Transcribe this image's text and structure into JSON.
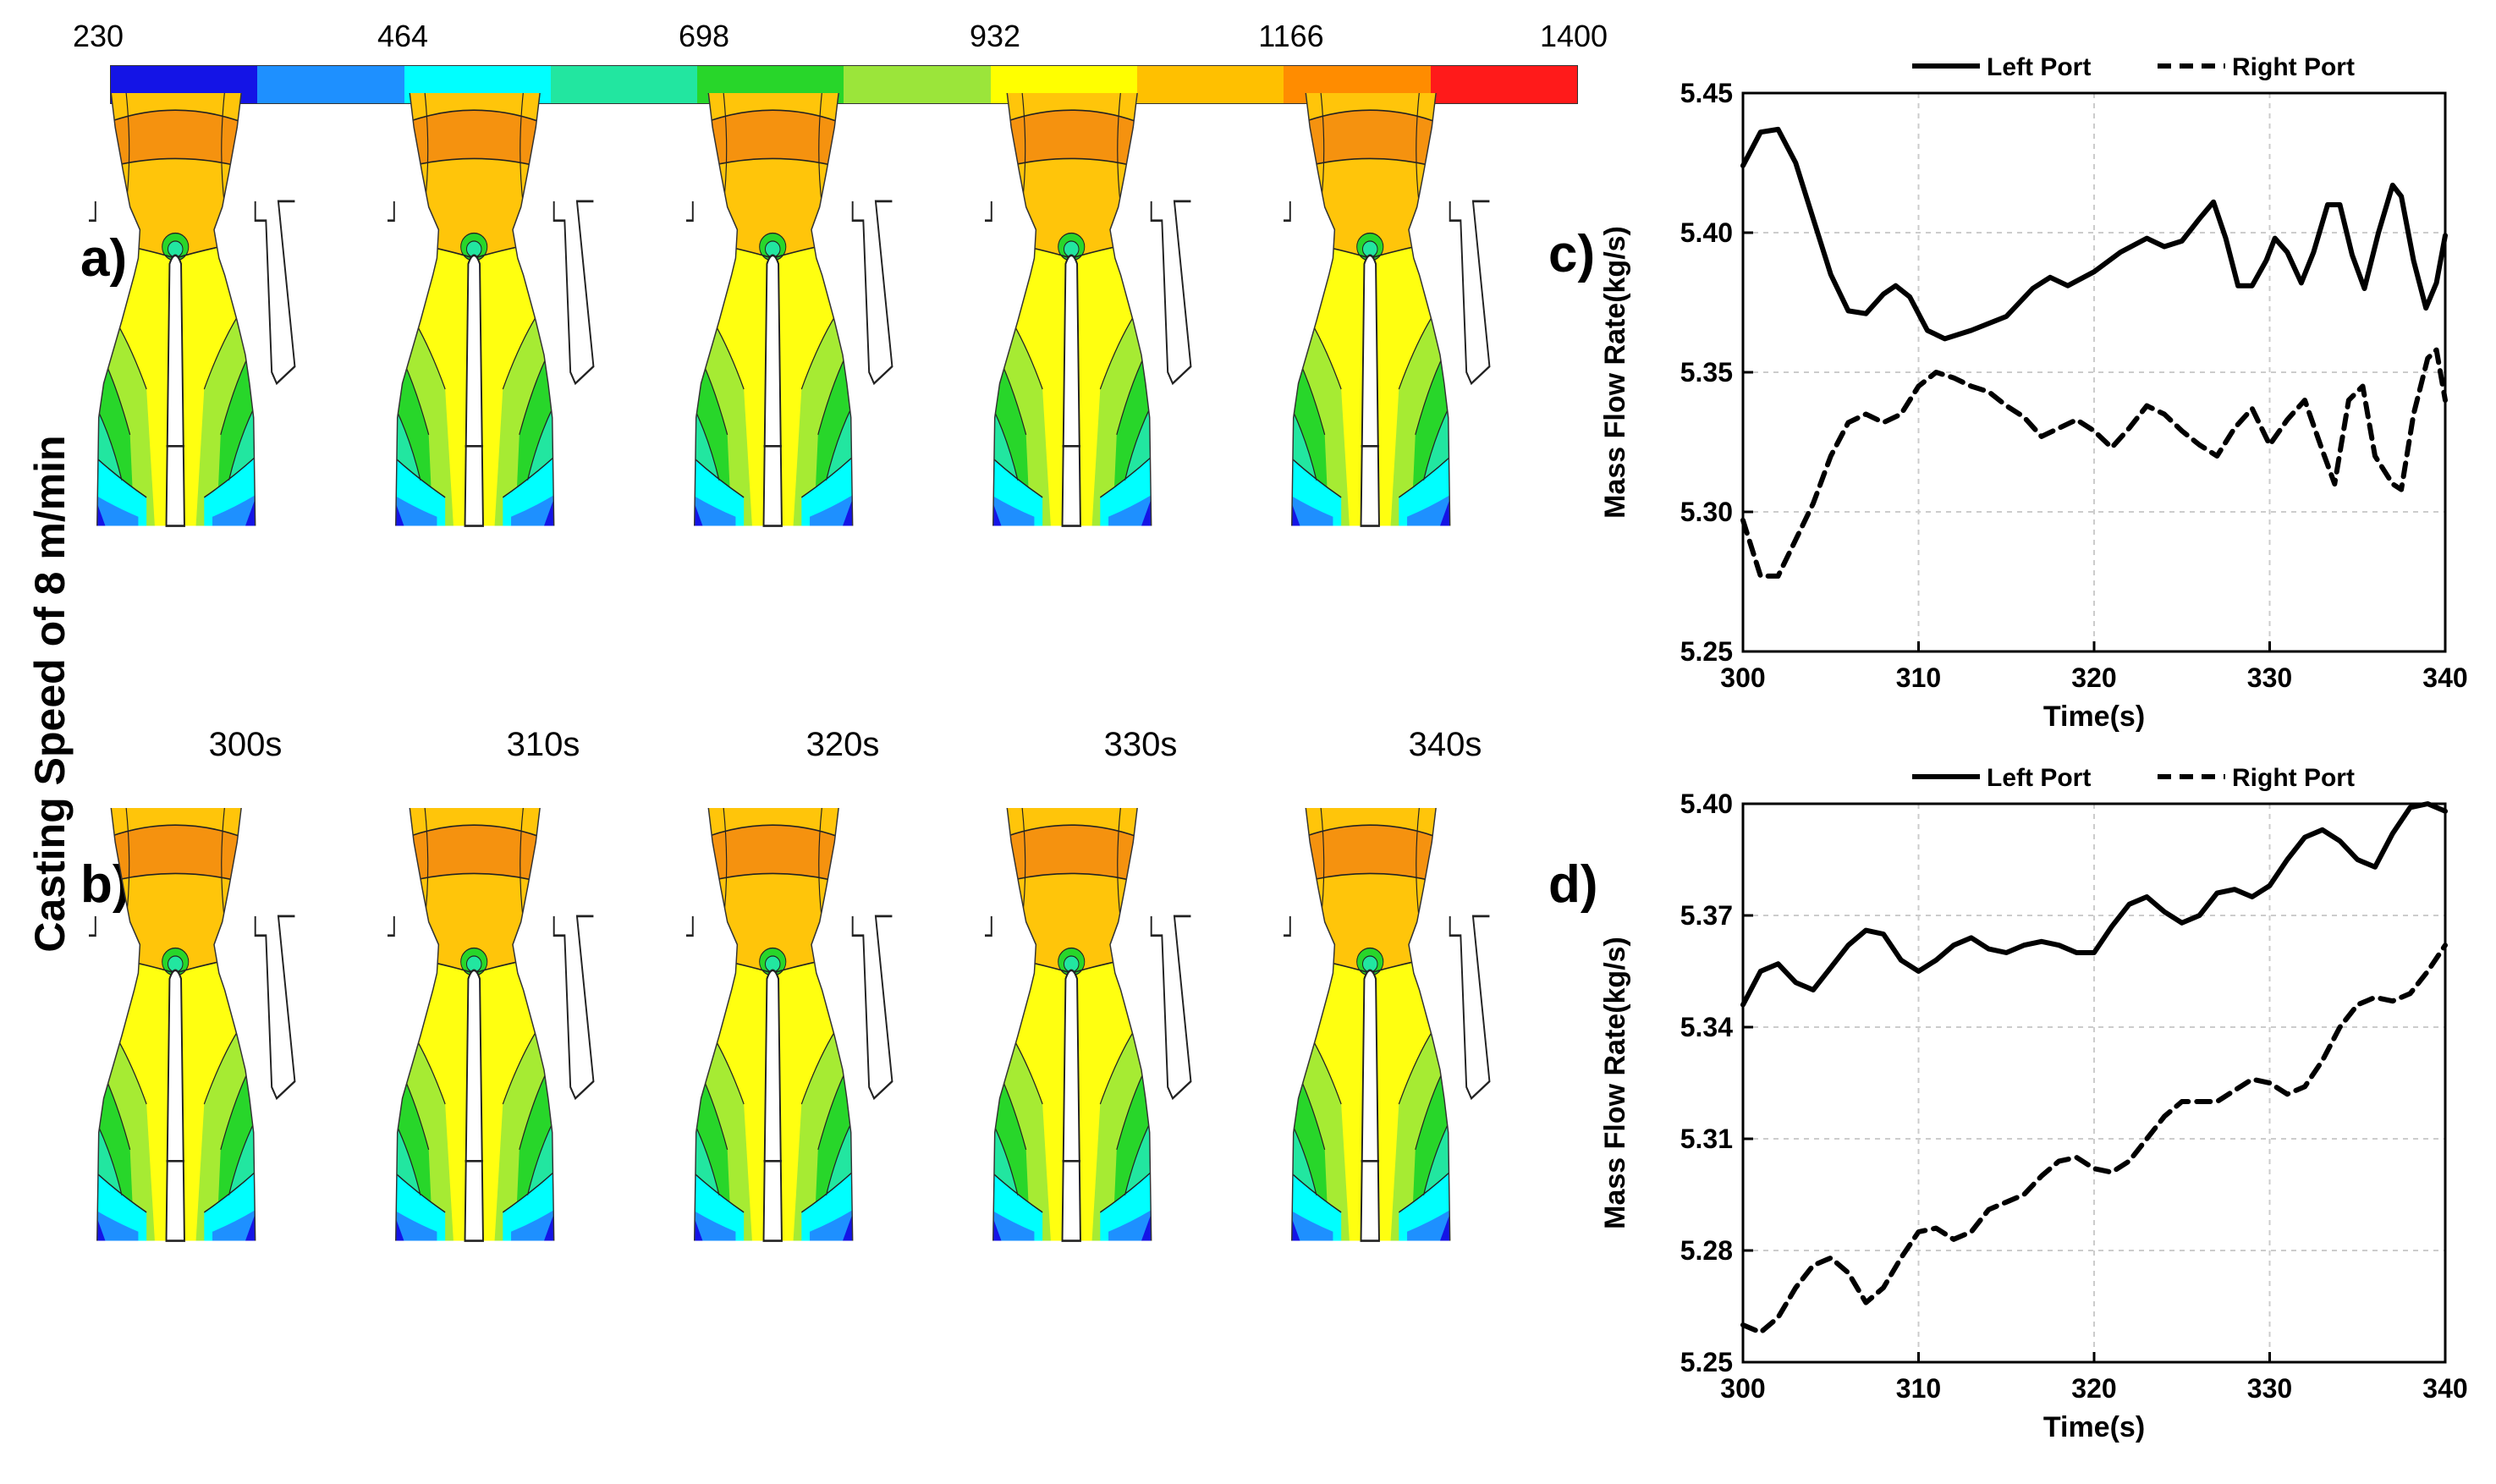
{
  "figure": {
    "colorbar": {
      "ticks": [
        "230",
        "464",
        "698",
        "932",
        "1166",
        "1400"
      ],
      "colors": [
        "#1414e6",
        "#1e90ff",
        "#00ffff",
        "#22e6a0",
        "#28d62a",
        "#9be53a",
        "#ffff00",
        "#ffc000",
        "#ff8c00",
        "#ff1a1a"
      ]
    },
    "side_title": "Casting Speed of 8 m/min",
    "panel_labels": {
      "a": "a)",
      "b": "b)",
      "c": "c)",
      "d": "d)"
    },
    "time_labels": [
      "300s",
      "310s",
      "320s",
      "330s",
      "340s"
    ],
    "contour_colors": {
      "red": "#ff1a1a",
      "dark_orange": "#f5920f",
      "orange": "#ffc50a",
      "yellow": "#ffff10",
      "yellow_green": "#a6eb33",
      "green": "#28d62a",
      "teal": "#22e6a0",
      "cyan": "#00ffff",
      "light_blue": "#1e90ff",
      "blue": "#1414e6"
    }
  },
  "chart_data": [
    {
      "type": "line",
      "panel": "c)",
      "xlabel": "Time(s)",
      "ylabel": "Mass Flow Rate(kg/s)",
      "xlim": [
        300,
        340
      ],
      "ylim": [
        5.25,
        5.45
      ],
      "xticks": [
        "300",
        "310",
        "320",
        "330",
        "340"
      ],
      "yticks": [
        "5.25",
        "5.30",
        "5.35",
        "5.40",
        "5.45"
      ],
      "legend": {
        "position": "top",
        "entries": [
          "Left Port",
          "Right Port"
        ]
      },
      "series": [
        {
          "name": "Left Port",
          "style": "solid",
          "x": [
            300,
            301,
            302,
            303,
            304,
            305,
            306,
            307,
            308,
            308.7,
            309.5,
            310.5,
            311.5,
            313,
            315,
            316.5,
            317.5,
            318.5,
            320,
            321.5,
            323,
            324,
            325,
            326,
            326.8,
            327.5,
            328.2,
            329,
            329.8,
            330.3,
            331,
            331.8,
            332.5,
            333.3,
            334,
            334.7,
            335.4,
            336.2,
            337,
            337.5,
            338.2,
            338.9,
            339.5,
            340
          ],
          "values": [
            5.424,
            5.436,
            5.437,
            5.425,
            5.405,
            5.385,
            5.372,
            5.371,
            5.378,
            5.381,
            5.377,
            5.365,
            5.362,
            5.365,
            5.37,
            5.38,
            5.384,
            5.381,
            5.386,
            5.393,
            5.398,
            5.395,
            5.397,
            5.405,
            5.411,
            5.398,
            5.381,
            5.381,
            5.39,
            5.398,
            5.393,
            5.382,
            5.393,
            5.41,
            5.41,
            5.392,
            5.38,
            5.4,
            5.417,
            5.413,
            5.39,
            5.373,
            5.382,
            5.399
          ]
        },
        {
          "name": "Right Port",
          "style": "dashed",
          "x": [
            300,
            301,
            302,
            303,
            304,
            305,
            306,
            307,
            308,
            309,
            310,
            311,
            312,
            313,
            314,
            315,
            316,
            317,
            318,
            319,
            320,
            321,
            322,
            323,
            324,
            325,
            326,
            327,
            328,
            329,
            330,
            331,
            332,
            333,
            333.7,
            334.5,
            335.3,
            336,
            337,
            337.5,
            338.2,
            339,
            339.5,
            340
          ],
          "values": [
            5.297,
            5.277,
            5.277,
            5.29,
            5.303,
            5.32,
            5.332,
            5.335,
            5.332,
            5.335,
            5.345,
            5.35,
            5.348,
            5.345,
            5.343,
            5.338,
            5.334,
            5.327,
            5.33,
            5.333,
            5.329,
            5.323,
            5.33,
            5.338,
            5.335,
            5.329,
            5.324,
            5.32,
            5.33,
            5.337,
            5.324,
            5.333,
            5.34,
            5.322,
            5.31,
            5.34,
            5.345,
            5.32,
            5.31,
            5.308,
            5.335,
            5.355,
            5.358,
            5.34
          ]
        }
      ]
    },
    {
      "type": "line",
      "panel": "d)",
      "xlabel": "Time(s)",
      "ylabel": "Mass Flow Rate(kg/s)",
      "xlim": [
        300,
        340
      ],
      "ylim": [
        5.25,
        5.4
      ],
      "xticks": [
        "300",
        "310",
        "320",
        "330",
        "340"
      ],
      "yticks": [
        "5.25",
        "5.28",
        "5.31",
        "5.34",
        "5.37",
        "5.40"
      ],
      "legend": {
        "position": "top",
        "entries": [
          "Left Port",
          "Right Port"
        ]
      },
      "series": [
        {
          "name": "Left Port",
          "style": "solid",
          "x": [
            300,
            301,
            302,
            303,
            304,
            305,
            306,
            307,
            308,
            309,
            310,
            311,
            312,
            313,
            314,
            315,
            316,
            317,
            318,
            319,
            320,
            321,
            322,
            323,
            324,
            325,
            326,
            327,
            328,
            329,
            330,
            331,
            332,
            333,
            334,
            335,
            336,
            337,
            338,
            339,
            340
          ],
          "values": [
            5.346,
            5.355,
            5.357,
            5.352,
            5.35,
            5.356,
            5.362,
            5.366,
            5.365,
            5.358,
            5.355,
            5.358,
            5.362,
            5.364,
            5.361,
            5.36,
            5.362,
            5.363,
            5.362,
            5.36,
            5.36,
            5.367,
            5.373,
            5.375,
            5.371,
            5.368,
            5.37,
            5.376,
            5.377,
            5.375,
            5.378,
            5.385,
            5.391,
            5.393,
            5.39,
            5.385,
            5.383,
            5.392,
            5.399,
            5.4,
            5.398
          ]
        },
        {
          "name": "Right Port",
          "style": "dashed",
          "x": [
            300,
            301,
            302,
            303,
            304,
            305,
            306,
            307,
            308,
            309,
            310,
            311,
            312,
            313,
            314,
            315,
            316,
            317,
            318,
            319,
            320,
            321,
            322,
            323,
            324,
            325,
            326,
            327,
            328,
            329,
            330,
            331,
            332,
            333,
            334,
            335,
            336,
            337,
            338,
            339,
            340
          ],
          "values": [
            5.26,
            5.258,
            5.262,
            5.27,
            5.276,
            5.278,
            5.274,
            5.266,
            5.27,
            5.278,
            5.285,
            5.286,
            5.283,
            5.285,
            5.291,
            5.293,
            5.295,
            5.3,
            5.304,
            5.305,
            5.302,
            5.301,
            5.304,
            5.31,
            5.316,
            5.32,
            5.32,
            5.32,
            5.323,
            5.326,
            5.325,
            5.322,
            5.324,
            5.331,
            5.34,
            5.346,
            5.348,
            5.347,
            5.349,
            5.355,
            5.362
          ]
        }
      ]
    }
  ]
}
